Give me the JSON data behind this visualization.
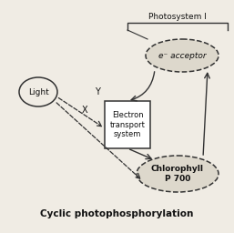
{
  "title": "Cyclic photophosphorylation",
  "photosystem_label": "Photosystem I",
  "light_label": "Light",
  "acceptor_label": "e⁻ acceptor",
  "ets_label": "Electron\ntransport\nsystem",
  "chlorophyll_label": "Chlorophyll\nP 700",
  "label_x": "X",
  "label_y": "Y",
  "bg_color": "#f0ece4",
  "box_bg": "#ffffff",
  "oval_bg": "#ddd8cc",
  "text_color": "#111111",
  "border_color": "#333333"
}
